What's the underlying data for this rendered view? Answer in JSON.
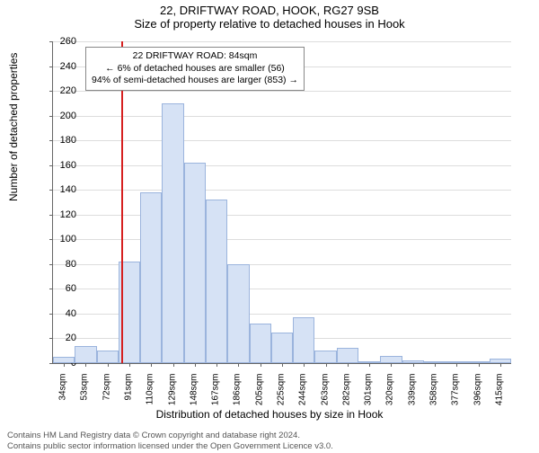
{
  "chart": {
    "type": "histogram",
    "title_main": "22, DRIFTWAY ROAD, HOOK, RG27 9SB",
    "title_sub": "Size of property relative to detached houses in Hook",
    "xlabel": "Distribution of detached houses by size in Hook",
    "ylabel": "Number of detached properties",
    "bar_fill": "#d6e2f5",
    "bar_border": "#9bb4dd",
    "grid_color": "#dddddd",
    "background_color": "#ffffff",
    "ref_line_color": "#d62020",
    "ref_x_value": 84,
    "font_family": "Arial",
    "title_fontsize": 13,
    "label_fontsize": 12,
    "tick_fontsize": 11,
    "xtick_rotation": -90,
    "ylim": [
      0,
      260
    ],
    "ytick_step": 20,
    "categories": [
      "34sqm",
      "53sqm",
      "72sqm",
      "91sqm",
      "110sqm",
      "129sqm",
      "148sqm",
      "167sqm",
      "186sqm",
      "205sqm",
      "225sqm",
      "244sqm",
      "263sqm",
      "282sqm",
      "301sqm",
      "320sqm",
      "339sqm",
      "358sqm",
      "377sqm",
      "396sqm",
      "415sqm"
    ],
    "values": [
      5,
      14,
      10,
      82,
      138,
      210,
      162,
      132,
      80,
      32,
      25,
      37,
      10,
      12,
      1,
      6,
      2,
      0,
      1,
      1,
      4
    ],
    "annotation": {
      "line1": "22 DRIFTWAY ROAD: 84sqm",
      "line2": "← 6% of detached houses are smaller (56)",
      "line3": "94% of semi-detached houses are larger (853) →",
      "border_color": "#888888",
      "background": "#ffffff"
    },
    "footer_line1": "Contains HM Land Registry data © Crown copyright and database right 2024.",
    "footer_line2": "Contains public sector information licensed under the Open Government Licence v3.0."
  }
}
